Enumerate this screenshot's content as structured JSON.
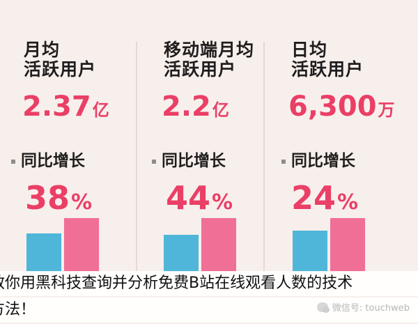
{
  "columns": [
    {
      "title_line1": "月均",
      "title_line2": "活跃用户",
      "number": "2.37",
      "number_unit": "亿",
      "yoy_label": "同比增长",
      "pct": "38",
      "pct_unit": "%"
    },
    {
      "title_line1": "移动端月均",
      "title_line2": "活跃用户",
      "number": "2.2",
      "number_unit": "亿",
      "yoy_label": "同比增长",
      "pct": "44",
      "pct_unit": "%"
    },
    {
      "title_line1": "日均",
      "title_line2": "活跃用户",
      "number": "6,300",
      "number_unit": "万",
      "yoy_label": "同比增长",
      "pct": "24",
      "pct_unit": "%"
    }
  ],
  "chart_data": {
    "type": "bar",
    "categories": [
      "月均活跃用户",
      "移动端月均活跃用户",
      "日均活跃用户"
    ],
    "series": [
      {
        "values": [
          0.72,
          0.69,
          0.76
        ]
      },
      {
        "values": [
          1.0,
          1.0,
          1.0
        ]
      }
    ],
    "ylim": [
      0,
      1
    ]
  },
  "caption": {
    "line1": "教你用黑科技查询并分析免费B站在线观看人数的技术",
    "line2": "方法！"
  },
  "watermark": {
    "text": "微信号: touchweb"
  },
  "colors": {
    "background": "#f7efec",
    "accent_pink": "#ea3f66",
    "bar_blue": "#4fb6d9",
    "bar_pink": "#ef6f97"
  }
}
